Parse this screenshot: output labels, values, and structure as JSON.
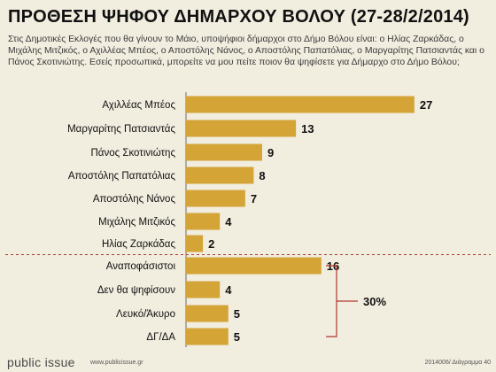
{
  "header": {
    "title": "ΠΡΟΘΕΣΗ ΨΗΦΟΥ ΔΗΜΑΡΧΟΥ ΒΟΛΟΥ (27-28/2/2014)",
    "question": "Στις Δημοτικές Εκλογές που θα γίνουν το Μάιο, υποψήφιοι δήμαρχοι στο Δήμο Βόλου είναι: ο Ηλίας Ζαρκάδας, ο Μιχάλης Μιτζικός, ο Αχιλλέας Μπέος, ο Αποστόλης Νάνος, ο Αποστόλης Παπατόλιας, ο Μαργαρίτης Πατσιαντάς και ο Πάνος Σκοτινιώτης. Εσείς προσωπικά, μπορείτε να μου πείτε ποιον θα ψηφίσετε για Δήμαρχο στο Δήμο Βόλου;"
  },
  "chart_data": {
    "type": "bar",
    "orientation": "horizontal",
    "title": "ΠΡΟΘΕΣΗ ΨΗΦΟΥ ΔΗΜΑΡΧΟΥ ΒΟΛΟΥ (27-28/2/2014)",
    "xlabel": "",
    "ylabel": "",
    "xlim": [
      0,
      27
    ],
    "grid": false,
    "legend": "none",
    "bar_color": "#d4a437",
    "categories": [
      "Αχιλλέας Μπέος",
      "Μαργαρίτης Πατσιαντάς",
      "Πάνος Σκοτινιώτης",
      "Αποστόλης Παπατόλιας",
      "Αποστόλης Νάνος",
      "Μιχάλης Μιτζικός",
      "Ηλίας Ζαρκάδας",
      "Αναποφάσιστοι",
      "Δεν θα ψηφίσουν",
      "Λευκό/Άκυρο",
      "ΔΓ/ΔΑ"
    ],
    "values": [
      27,
      13,
      9,
      8,
      7,
      4,
      2,
      16,
      4,
      5,
      5
    ],
    "divider_after_index": 6,
    "bracket": {
      "label": "30%",
      "from_index": 7,
      "to_index": 10
    }
  },
  "footer": {
    "logo": "public issue",
    "site": "www.publicissue.gr",
    "code": "2014006/ Διάγραμμα 40"
  }
}
